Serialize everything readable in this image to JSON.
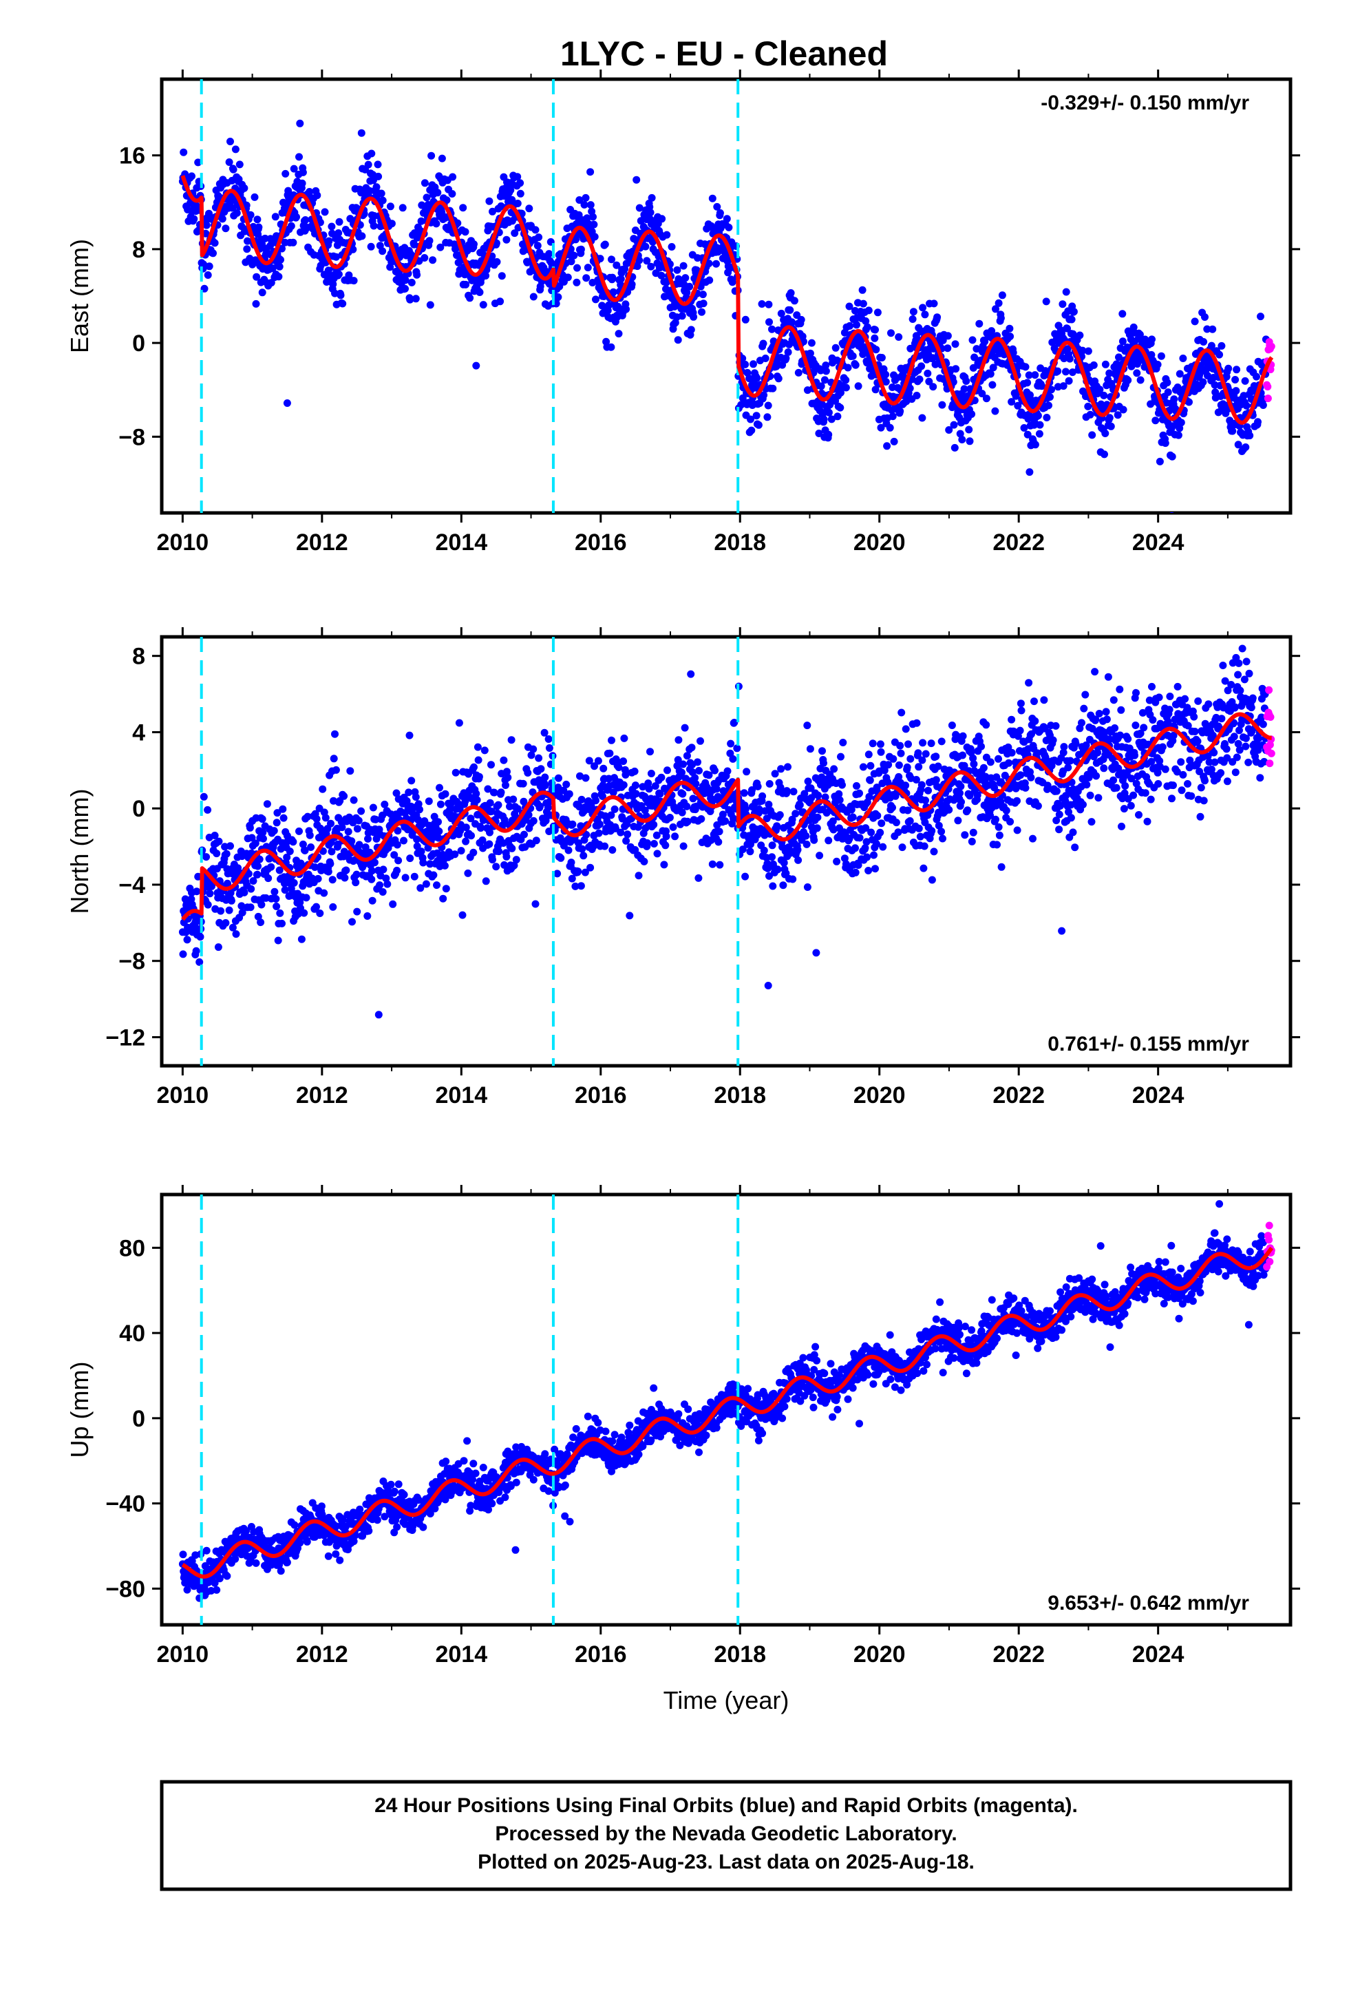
{
  "title": "1LYC  - EU - Cleaned",
  "colors": {
    "final": "#0000ff",
    "rapid": "#ff00ff",
    "model": "#ff0000",
    "steps": "#00e5ff"
  },
  "chart_data": [
    {
      "type": "scatter",
      "ylabel": "East (mm)",
      "rate": "-0.329+/- 0.150 mm/yr",
      "rate_position": "top-right",
      "xlim": [
        2009.7,
        2025.9
      ],
      "ylim": [
        -14.5,
        22.5
      ],
      "x_ticks": [
        2010,
        2012,
        2014,
        2016,
        2018,
        2020,
        2022,
        2024
      ],
      "y_ticks": [
        -8,
        0,
        8,
        16
      ],
      "steps": [
        2010.27,
        2015.32,
        2017.97
      ],
      "model": {
        "offset": 15.2,
        "trend": -0.329,
        "amplitude": 3.0,
        "phase_year": 2010.45,
        "jumps": [
          {
            "x": 2010.27,
            "dy": -5.0
          },
          {
            "x": 2015.32,
            "dy": -1.5
          },
          {
            "x": 2017.97,
            "dy": -7.5
          }
        ]
      },
      "noise": 1.6,
      "series": [
        {
          "name": "Final Orbits",
          "color": "final"
        },
        {
          "name": "Rapid Orbits",
          "color": "rapid"
        }
      ]
    },
    {
      "type": "scatter",
      "ylabel": "North (mm)",
      "rate": "0.761+/- 0.155 mm/yr",
      "rate_position": "bottom-right",
      "xlim": [
        2009.7,
        2025.9
      ],
      "ylim": [
        -13.5,
        9.0
      ],
      "x_ticks": [
        2010,
        2012,
        2014,
        2016,
        2018,
        2020,
        2022,
        2024
      ],
      "y_ticks": [
        -12,
        -8,
        -4,
        0,
        4,
        8
      ],
      "steps": [
        2010.27,
        2015.32,
        2017.97
      ],
      "model": {
        "offset": -6.3,
        "trend": 0.761,
        "amplitude": 0.8,
        "phase_year": 2010.9,
        "jumps": [
          {
            "x": 2010.27,
            "dy": 2.4
          },
          {
            "x": 2015.32,
            "dy": -1.0
          },
          {
            "x": 2017.97,
            "dy": -2.5
          }
        ]
      },
      "noise": 1.4,
      "series": [
        {
          "name": "Final Orbits",
          "color": "final"
        },
        {
          "name": "Rapid Orbits",
          "color": "rapid"
        }
      ]
    },
    {
      "type": "scatter",
      "ylabel": "Up (mm)",
      "rate": "9.653+/- 0.642 mm/yr",
      "rate_position": "bottom-right",
      "xlim": [
        2009.7,
        2025.9
      ],
      "ylim": [
        -97,
        105
      ],
      "x_ticks": [
        2010,
        2012,
        2014,
        2016,
        2018,
        2020,
        2022,
        2024
      ],
      "y_ticks": [
        -80,
        -40,
        0,
        40,
        80
      ],
      "xlabel": "Time (year)",
      "steps": [
        2010.27,
        2015.32,
        2017.97
      ],
      "model": {
        "offset": -72,
        "trend": 9.653,
        "amplitude": 5.5,
        "phase_year": 2010.6,
        "jumps": []
      },
      "noise": 4.5,
      "series": [
        {
          "name": "Final Orbits",
          "color": "final"
        },
        {
          "name": "Rapid Orbits",
          "color": "rapid"
        }
      ]
    }
  ],
  "footer": [
    "24 Hour Positions Using Final Orbits (blue) and Rapid Orbits (magenta).",
    "Processed by the Nevada Geodetic Laboratory.",
    "Plotted on 2025-Aug-23. Last data on 2025-Aug-18."
  ]
}
